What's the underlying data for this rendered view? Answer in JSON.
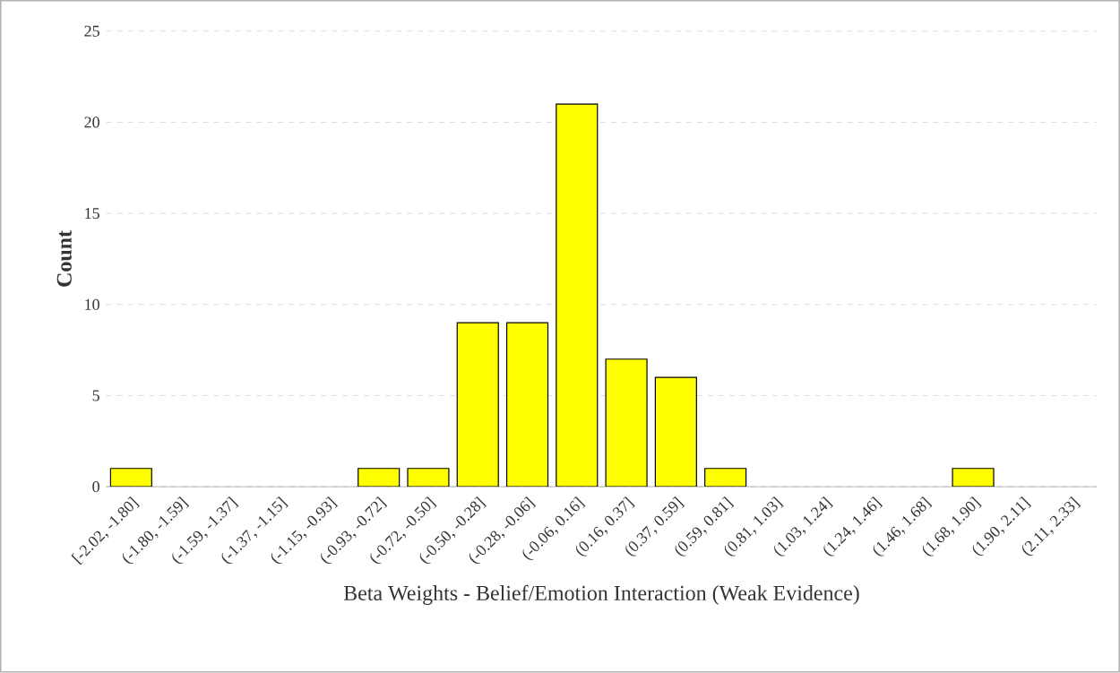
{
  "chart_data": {
    "type": "bar",
    "xlabel": "Beta Weights - Belief/Emotion Interaction (Weak Evidence)",
    "ylabel": "Count",
    "categories": [
      "[-2.02, -1.80]",
      "(-1.80, -1.59]",
      "(-1.59, -1.37]",
      "(-1.37, -1.15]",
      "(-1.15, -0.93]",
      "(-0.93, -0.72]",
      "(-0.72, -0.50]",
      "(-0.50, -0.28]",
      "(-0.28, -0.06]",
      "(-0.06, 0.16]",
      "(0.16, 0.37]",
      "(0.37, 0.59]",
      "(0.59, 0.81]",
      "(0.81, 1.03]",
      "(1.03, 1.24]",
      "(1.24, 1.46]",
      "(1.46, 1.68]",
      "(1.68, 1.90]",
      "(1.90, 2.11]",
      "(2.11, 2.33]"
    ],
    "values": [
      1,
      0,
      0,
      0,
      0,
      1,
      1,
      9,
      9,
      21,
      7,
      6,
      1,
      0,
      0,
      0,
      0,
      1,
      0,
      0
    ],
    "color": "#ffff00",
    "ylim": [
      0,
      25
    ],
    "yticks": [
      0,
      5,
      10,
      15,
      20,
      25
    ],
    "grid": "y"
  }
}
